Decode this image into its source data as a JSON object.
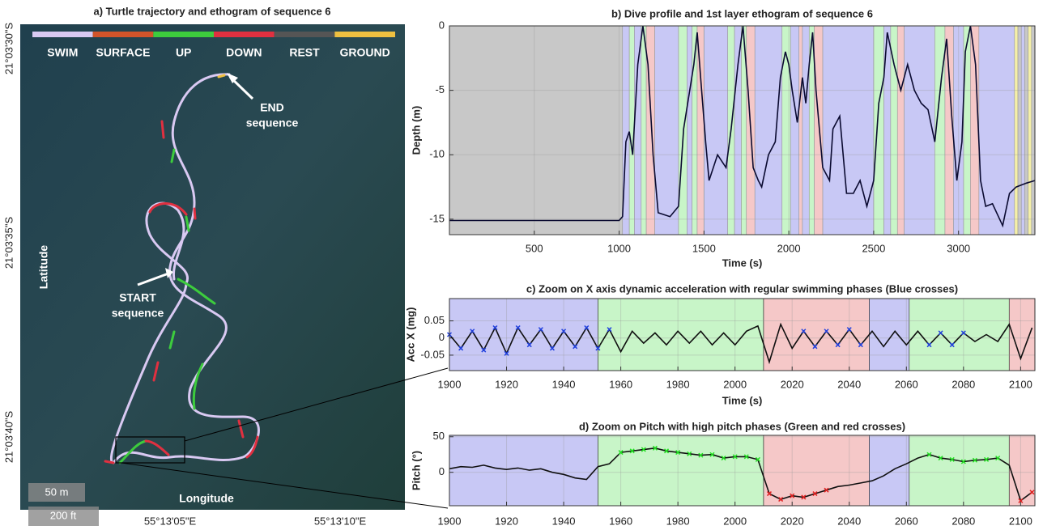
{
  "chart_data": [
    {
      "type": "map",
      "title": "a) Turtle trajectory and ethogram of sequence 6",
      "series": [
        {
          "name": "SWIM",
          "color": "#d9c9f2"
        },
        {
          "name": "SURFACE",
          "color": "#d2542a"
        },
        {
          "name": "UP",
          "color": "#3dcc3d"
        },
        {
          "name": "DOWN",
          "color": "#e03040"
        },
        {
          "name": "REST",
          "color": "#555555"
        },
        {
          "name": "GROUND",
          "color": "#f0c040"
        }
      ],
      "lat_labels": [
        "21°03'30\"S",
        "21°03'35\"S",
        "21°03'40\"S"
      ],
      "lon_labels": [
        "55°13'05\"E",
        "55°13'10\"E"
      ],
      "ylabel": "Latitude",
      "xlabel": "Longitude",
      "annotations": [
        [
          "END",
          "sequence"
        ],
        [
          "START",
          "sequence"
        ]
      ],
      "scale_labels": [
        "50 m",
        "200 ft"
      ]
    },
    {
      "type": "line",
      "title": "b) Dive profile and 1st layer ethogram of sequence 6",
      "xlabel": "Time (s)",
      "ylabel": "Depth (m)",
      "xlim": [
        0,
        3450
      ],
      "ylim": [
        -16.2,
        0
      ],
      "xticks": [
        500,
        1000,
        1500,
        2000,
        2500,
        3000
      ],
      "yticks": [
        -15,
        -10,
        -5,
        0
      ],
      "grid": true,
      "phases": [
        {
          "x0": 0,
          "x1": 1020,
          "color": "#c8c8c8"
        },
        {
          "x0": 1020,
          "x1": 1060,
          "color": "#c8c8f5"
        },
        {
          "x0": 1060,
          "x1": 1090,
          "color": "#c8f5c8"
        },
        {
          "x0": 1090,
          "x1": 1130,
          "color": "#c8c8f5"
        },
        {
          "x0": 1130,
          "x1": 1160,
          "color": "#c8f5c8"
        },
        {
          "x0": 1160,
          "x1": 1210,
          "color": "#f5c8c8"
        },
        {
          "x0": 1210,
          "x1": 1350,
          "color": "#c8c8f5"
        },
        {
          "x0": 1350,
          "x1": 1400,
          "color": "#c8f5c8"
        },
        {
          "x0": 1400,
          "x1": 1430,
          "color": "#c8c8f5"
        },
        {
          "x0": 1430,
          "x1": 1460,
          "color": "#c8f5c8"
        },
        {
          "x0": 1460,
          "x1": 1500,
          "color": "#f5c8c8"
        },
        {
          "x0": 1500,
          "x1": 1640,
          "color": "#c8c8f5"
        },
        {
          "x0": 1640,
          "x1": 1680,
          "color": "#c8f5c8"
        },
        {
          "x0": 1680,
          "x1": 1720,
          "color": "#c8c8f5"
        },
        {
          "x0": 1720,
          "x1": 1750,
          "color": "#c8f5c8"
        },
        {
          "x0": 1750,
          "x1": 1800,
          "color": "#f5c8c8"
        },
        {
          "x0": 1800,
          "x1": 1960,
          "color": "#c8c8f5"
        },
        {
          "x0": 1960,
          "x1": 2010,
          "color": "#c8f5c8"
        },
        {
          "x0": 2010,
          "x1": 2060,
          "color": "#c8c8f5"
        },
        {
          "x0": 2060,
          "x1": 2080,
          "color": "#f5c8c8"
        },
        {
          "x0": 2080,
          "x1": 2120,
          "color": "#c8c8f5"
        },
        {
          "x0": 2120,
          "x1": 2150,
          "color": "#c8f5c8"
        },
        {
          "x0": 2150,
          "x1": 2200,
          "color": "#f5c8c8"
        },
        {
          "x0": 2200,
          "x1": 2500,
          "color": "#c8c8f5"
        },
        {
          "x0": 2500,
          "x1": 2560,
          "color": "#c8f5c8"
        },
        {
          "x0": 2560,
          "x1": 2600,
          "color": "#c8c8f5"
        },
        {
          "x0": 2600,
          "x1": 2640,
          "color": "#c8f5c8"
        },
        {
          "x0": 2640,
          "x1": 2680,
          "color": "#f5c8c8"
        },
        {
          "x0": 2680,
          "x1": 2860,
          "color": "#c8c8f5"
        },
        {
          "x0": 2860,
          "x1": 2920,
          "color": "#c8f5c8"
        },
        {
          "x0": 2920,
          "x1": 2970,
          "color": "#f5c8c8"
        },
        {
          "x0": 2970,
          "x1": 3030,
          "color": "#c8c8f5"
        },
        {
          "x0": 3030,
          "x1": 3070,
          "color": "#c8f5c8"
        },
        {
          "x0": 3070,
          "x1": 3120,
          "color": "#f5c8c8"
        },
        {
          "x0": 3120,
          "x1": 3330,
          "color": "#c8c8f5"
        },
        {
          "x0": 3330,
          "x1": 3350,
          "color": "#f5f0a8"
        },
        {
          "x0": 3350,
          "x1": 3370,
          "color": "#c8c8c8"
        },
        {
          "x0": 3370,
          "x1": 3390,
          "color": "#c8c8f5"
        },
        {
          "x0": 3390,
          "x1": 3410,
          "color": "#c8c8c8"
        },
        {
          "x0": 3410,
          "x1": 3430,
          "color": "#f5f0a8"
        },
        {
          "x0": 3430,
          "x1": 3450,
          "color": "#c8c8c8"
        }
      ],
      "x": [
        0,
        1000,
        1020,
        1040,
        1060,
        1080,
        1110,
        1140,
        1170,
        1200,
        1230,
        1300,
        1350,
        1380,
        1410,
        1440,
        1460,
        1480,
        1510,
        1530,
        1580,
        1630,
        1660,
        1700,
        1730,
        1760,
        1790,
        1820,
        1840,
        1880,
        1920,
        1950,
        1980,
        2000,
        2020,
        2050,
        2080,
        2100,
        2120,
        2140,
        2160,
        2200,
        2240,
        2260,
        2300,
        2340,
        2380,
        2420,
        2460,
        2500,
        2530,
        2560,
        2580,
        2620,
        2660,
        2700,
        2740,
        2780,
        2820,
        2860,
        2900,
        2930,
        2960,
        2990,
        3020,
        3040,
        3070,
        3100,
        3130,
        3160,
        3200,
        3260,
        3300,
        3340,
        3400,
        3450
      ],
      "series": [
        {
          "color": "#0a0a30",
          "values": [
            -15.1,
            -15.1,
            -14.8,
            -9,
            -8.2,
            -10,
            -3,
            0,
            -3,
            -10,
            -14.5,
            -14.8,
            -14,
            -8,
            -5.5,
            -3,
            -0.5,
            -4,
            -9,
            -12,
            -10,
            -11,
            -8,
            -3,
            0,
            -5,
            -11,
            -12,
            -12.5,
            -10,
            -9,
            -4,
            -2,
            -3,
            -5,
            -7.5,
            -4,
            -6,
            -3,
            -0.5,
            -5,
            -11,
            -12,
            -8,
            -7,
            -13,
            -13,
            -12,
            -14,
            -12,
            -6,
            -4,
            -0.5,
            -3,
            -5,
            -3,
            -5,
            -6,
            -6.5,
            -9,
            -4,
            -1,
            -7,
            -12,
            -9,
            -2,
            0,
            -3,
            -12,
            -14,
            -13.8,
            -15.5,
            -13,
            -12.5,
            -12.2,
            -12
          ]
        }
      ]
    },
    {
      "type": "line",
      "title": "c) Zoom on X axis dynamic acceleration with regular swimming phases (Blue crosses)",
      "xlabel": "Time (s)",
      "ylabel": "Acc X (mg)",
      "xlim": [
        1900,
        2105
      ],
      "ylim": [
        -0.095,
        0.115
      ],
      "xticks": [
        1900,
        1920,
        1940,
        1960,
        1980,
        2000,
        2020,
        2040,
        2060,
        2080,
        2100
      ],
      "yticks": [
        -0.05,
        0,
        0.05
      ],
      "grid": true,
      "phases": [
        {
          "x0": 1900,
          "x1": 1952,
          "color": "#c8c8f5"
        },
        {
          "x0": 1952,
          "x1": 2010,
          "color": "#c8f5c8"
        },
        {
          "x0": 2010,
          "x1": 2047,
          "color": "#f5c8c8"
        },
        {
          "x0": 2047,
          "x1": 2061,
          "color": "#c8c8f5"
        },
        {
          "x0": 2061,
          "x1": 2096,
          "color": "#c8f5c8"
        },
        {
          "x0": 2096,
          "x1": 2105,
          "color": "#f5c8c8"
        }
      ],
      "x": [
        1900,
        1904,
        1908,
        1912,
        1916,
        1920,
        1924,
        1928,
        1932,
        1936,
        1940,
        1944,
        1948,
        1952,
        1956,
        1960,
        1964,
        1968,
        1972,
        1976,
        1980,
        1984,
        1988,
        1992,
        1996,
        2000,
        2004,
        2008,
        2012,
        2016,
        2020,
        2024,
        2028,
        2032,
        2036,
        2040,
        2044,
        2048,
        2052,
        2056,
        2060,
        2064,
        2068,
        2072,
        2076,
        2080,
        2084,
        2088,
        2092,
        2096,
        2100,
        2104
      ],
      "series": [
        {
          "color": "#101010",
          "values": [
            0.01,
            -0.03,
            0.02,
            -0.035,
            0.03,
            -0.045,
            0.03,
            -0.02,
            0.025,
            -0.03,
            0.02,
            -0.025,
            0.03,
            -0.03,
            0.025,
            -0.04,
            0.02,
            -0.015,
            0.015,
            -0.02,
            0.02,
            -0.015,
            0.02,
            -0.02,
            0.015,
            -0.02,
            0.02,
            0.035,
            -0.07,
            0.04,
            -0.03,
            0.02,
            -0.025,
            0.02,
            -0.02,
            0.025,
            -0.02,
            0.02,
            -0.025,
            0.02,
            -0.02,
            0.02,
            -0.02,
            0.015,
            -0.02,
            0.015,
            -0.01,
            0.01,
            -0.01,
            0.04,
            -0.06,
            0.03
          ]
        },
        {
          "color": "#2040e0",
          "marker": "x",
          "values": [
            0.01,
            -0.03,
            0.02,
            -0.035,
            0.03,
            -0.045,
            0.03,
            -0.02,
            0.025,
            -0.03,
            0.02,
            -0.025,
            0.03,
            -0.03,
            0.025,
            null,
            null,
            null,
            null,
            null,
            null,
            null,
            null,
            null,
            null,
            null,
            null,
            null,
            null,
            null,
            null,
            0.02,
            -0.025,
            0.02,
            -0.02,
            0.025,
            -0.02,
            null,
            null,
            null,
            null,
            null,
            -0.02,
            0.015,
            -0.02,
            0.015,
            null,
            null,
            null,
            null,
            null,
            null
          ]
        }
      ]
    },
    {
      "type": "line",
      "title": "d) Zoom on Pitch with high pitch phases (Green and red crosses)",
      "ylabel": "Pitch (°)",
      "xlim": [
        1900,
        2105
      ],
      "ylim": [
        -47,
        52
      ],
      "xticks": [
        1900,
        1920,
        1940,
        1960,
        1980,
        2000,
        2020,
        2040,
        2060,
        2080,
        2100
      ],
      "yticks": [
        0,
        50
      ],
      "grid": true,
      "phases": [
        {
          "x0": 1900,
          "x1": 1952,
          "color": "#c8c8f5"
        },
        {
          "x0": 1952,
          "x1": 2010,
          "color": "#c8f5c8"
        },
        {
          "x0": 2010,
          "x1": 2047,
          "color": "#f5c8c8"
        },
        {
          "x0": 2047,
          "x1": 2061,
          "color": "#c8c8f5"
        },
        {
          "x0": 2061,
          "x1": 2096,
          "color": "#c8f5c8"
        },
        {
          "x0": 2096,
          "x1": 2105,
          "color": "#f5c8c8"
        }
      ],
      "x": [
        1900,
        1904,
        1908,
        1912,
        1916,
        1920,
        1924,
        1928,
        1932,
        1936,
        1940,
        1944,
        1948,
        1952,
        1956,
        1960,
        1964,
        1968,
        1972,
        1976,
        1980,
        1984,
        1988,
        1992,
        1996,
        2000,
        2004,
        2008,
        2012,
        2016,
        2020,
        2024,
        2028,
        2032,
        2036,
        2040,
        2044,
        2048,
        2052,
        2056,
        2060,
        2064,
        2068,
        2072,
        2076,
        2080,
        2084,
        2088,
        2092,
        2096,
        2100,
        2104
      ],
      "series": [
        {
          "color": "#101010",
          "values": [
            5,
            8,
            7,
            10,
            6,
            4,
            6,
            3,
            5,
            0,
            -3,
            -8,
            -10,
            8,
            12,
            28,
            30,
            32,
            34,
            30,
            28,
            26,
            24,
            25,
            20,
            22,
            22,
            18,
            -30,
            -38,
            -33,
            -35,
            -30,
            -25,
            -20,
            -18,
            -15,
            -12,
            -5,
            5,
            12,
            20,
            25,
            20,
            18,
            15,
            17,
            18,
            20,
            10,
            -40,
            -28
          ]
        },
        {
          "color": "#20e020",
          "marker": "x",
          "values": [
            null,
            null,
            null,
            null,
            null,
            null,
            null,
            null,
            null,
            null,
            null,
            null,
            null,
            null,
            null,
            28,
            30,
            32,
            34,
            30,
            28,
            26,
            24,
            25,
            20,
            22,
            22,
            18,
            null,
            null,
            null,
            null,
            null,
            null,
            null,
            null,
            null,
            null,
            null,
            null,
            null,
            null,
            25,
            20,
            18,
            15,
            17,
            18,
            20,
            null,
            null,
            null
          ]
        },
        {
          "color": "#e02020",
          "marker": "x",
          "values": [
            null,
            null,
            null,
            null,
            null,
            null,
            null,
            null,
            null,
            null,
            null,
            null,
            null,
            null,
            null,
            null,
            null,
            null,
            null,
            null,
            null,
            null,
            null,
            null,
            null,
            null,
            null,
            null,
            -30,
            -38,
            -33,
            -35,
            -30,
            -25,
            null,
            null,
            null,
            null,
            null,
            null,
            null,
            null,
            null,
            null,
            null,
            null,
            null,
            null,
            null,
            null,
            -40,
            -28
          ]
        }
      ]
    }
  ]
}
